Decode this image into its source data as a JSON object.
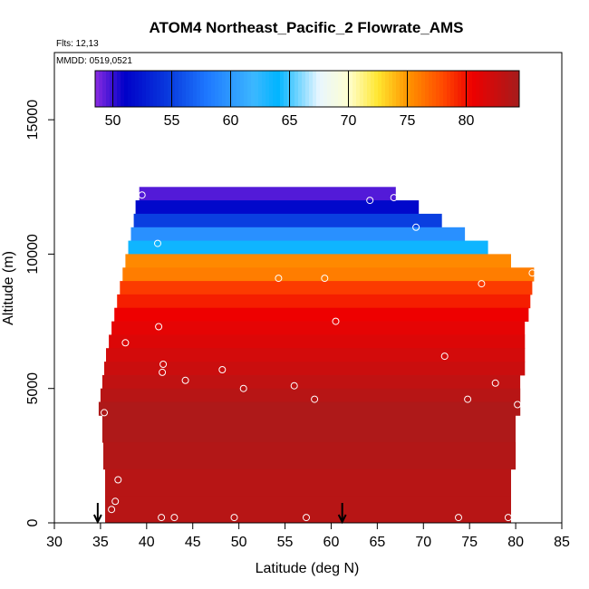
{
  "chart_data": {
    "type": "heatmap",
    "title": "ATOM4 Northeast_Pacific_2 Flowrate_AMS",
    "annotations": {
      "flights": "Flts: 12,13",
      "dates": "MMDD: 0519,0521"
    },
    "xlabel": "Latitude (deg N)",
    "ylabel": "Altitude (m)",
    "xlim": [
      30,
      85
    ],
    "ylim": [
      0,
      17500
    ],
    "x_ticks": [
      30,
      35,
      40,
      45,
      50,
      55,
      60,
      65,
      70,
      75,
      80,
      85
    ],
    "y_ticks": [
      0,
      5000,
      10000,
      15000
    ],
    "colorbar": {
      "range": [
        48.5,
        84.5
      ],
      "ticks": [
        50,
        55,
        60,
        65,
        70,
        75,
        80
      ],
      "stops": [
        {
          "v": 48.5,
          "c": "#8a2be2"
        },
        {
          "v": 51.0,
          "c": "#0000c8"
        },
        {
          "v": 55.0,
          "c": "#0a3fe0"
        },
        {
          "v": 58.0,
          "c": "#1e78ff"
        },
        {
          "v": 62.0,
          "c": "#3cb8ff"
        },
        {
          "v": 64.0,
          "c": "#00b4ff"
        },
        {
          "v": 67.5,
          "c": "#e8f6ff"
        },
        {
          "v": 70.0,
          "c": "#ffffd0"
        },
        {
          "v": 72.5,
          "c": "#ffe630"
        },
        {
          "v": 75.0,
          "c": "#ff9600"
        },
        {
          "v": 78.0,
          "c": "#ff4a00"
        },
        {
          "v": 80.5,
          "c": "#ee0000"
        },
        {
          "v": 84.5,
          "c": "#a51c1c"
        }
      ]
    },
    "bands": [
      {
        "alt_lo": 12000,
        "alt_hi": 12500,
        "lat_start": 39.2,
        "lat_end": 67.0,
        "value": 49.5
      },
      {
        "alt_lo": 11500,
        "alt_hi": 12000,
        "lat_start": 38.8,
        "lat_end": 69.5,
        "value": 51.5
      },
      {
        "alt_lo": 11000,
        "alt_hi": 11500,
        "lat_start": 38.6,
        "lat_end": 72.0,
        "value": 55.0
      },
      {
        "alt_lo": 10500,
        "alt_hi": 11000,
        "lat_start": 38.3,
        "lat_end": 74.5,
        "value": 59.5
      },
      {
        "alt_lo": 10000,
        "alt_hi": 10500,
        "lat_start": 38.0,
        "lat_end": 77.0,
        "value": 63.5
      },
      {
        "alt_lo": 9500,
        "alt_hi": 10000,
        "lat_start": 37.7,
        "lat_end": 79.5,
        "value": 75.5
      },
      {
        "alt_lo": 9000,
        "alt_hi": 9500,
        "lat_start": 37.4,
        "lat_end": 82.0,
        "value": 76.0
      },
      {
        "alt_lo": 8500,
        "alt_hi": 9000,
        "lat_start": 37.1,
        "lat_end": 81.8,
        "value": 78.5
      },
      {
        "alt_lo": 8000,
        "alt_hi": 8500,
        "lat_start": 36.8,
        "lat_end": 81.6,
        "value": 79.5
      },
      {
        "alt_lo": 7500,
        "alt_hi": 8000,
        "lat_start": 36.5,
        "lat_end": 81.4,
        "value": 80.5
      },
      {
        "alt_lo": 7000,
        "alt_hi": 7500,
        "lat_start": 36.2,
        "lat_end": 81.0,
        "value": 81.0
      },
      {
        "alt_lo": 6500,
        "alt_hi": 7000,
        "lat_start": 35.9,
        "lat_end": 81.0,
        "value": 81.5
      },
      {
        "alt_lo": 6000,
        "alt_hi": 6500,
        "lat_start": 35.6,
        "lat_end": 81.0,
        "value": 82.0
      },
      {
        "alt_lo": 5500,
        "alt_hi": 6000,
        "lat_start": 35.4,
        "lat_end": 81.0,
        "value": 82.5
      },
      {
        "alt_lo": 5000,
        "alt_hi": 5500,
        "lat_start": 35.2,
        "lat_end": 80.5,
        "value": 83.0
      },
      {
        "alt_lo": 4500,
        "alt_hi": 5000,
        "lat_start": 35.0,
        "lat_end": 80.5,
        "value": 83.5
      },
      {
        "alt_lo": 4000,
        "alt_hi": 4500,
        "lat_start": 34.8,
        "lat_end": 80.5,
        "value": 84.0
      },
      {
        "alt_lo": 3000,
        "alt_hi": 4000,
        "lat_start": 35.2,
        "lat_end": 80.0,
        "value": 84.0
      },
      {
        "alt_lo": 2000,
        "alt_hi": 3000,
        "lat_start": 35.3,
        "lat_end": 80.0,
        "value": 83.8
      },
      {
        "alt_lo": 1000,
        "alt_hi": 2000,
        "lat_start": 35.5,
        "lat_end": 79.5,
        "value": 83.5
      },
      {
        "alt_lo": 0,
        "alt_hi": 1000,
        "lat_start": 35.5,
        "lat_end": 79.5,
        "value": 83.5
      }
    ],
    "points": [
      {
        "lat": 39.5,
        "alt": 12200
      },
      {
        "lat": 64.2,
        "alt": 12000
      },
      {
        "lat": 66.8,
        "alt": 12100
      },
      {
        "lat": 69.2,
        "alt": 11000
      },
      {
        "lat": 41.2,
        "alt": 10400
      },
      {
        "lat": 54.3,
        "alt": 9100
      },
      {
        "lat": 59.3,
        "alt": 9100
      },
      {
        "lat": 76.3,
        "alt": 8900
      },
      {
        "lat": 81.8,
        "alt": 9300
      },
      {
        "lat": 37.7,
        "alt": 6700
      },
      {
        "lat": 41.3,
        "alt": 7300
      },
      {
        "lat": 60.5,
        "alt": 7500
      },
      {
        "lat": 72.3,
        "alt": 6200
      },
      {
        "lat": 41.8,
        "alt": 5900
      },
      {
        "lat": 41.7,
        "alt": 5600
      },
      {
        "lat": 48.2,
        "alt": 5700
      },
      {
        "lat": 44.2,
        "alt": 5300
      },
      {
        "lat": 50.5,
        "alt": 5000
      },
      {
        "lat": 56.0,
        "alt": 5100
      },
      {
        "lat": 58.2,
        "alt": 4600
      },
      {
        "lat": 74.8,
        "alt": 4600
      },
      {
        "lat": 77.8,
        "alt": 5200
      },
      {
        "lat": 80.2,
        "alt": 4400
      },
      {
        "lat": 35.4,
        "alt": 4100
      },
      {
        "lat": 36.9,
        "alt": 1600
      },
      {
        "lat": 36.6,
        "alt": 800
      },
      {
        "lat": 36.2,
        "alt": 500
      },
      {
        "lat": 41.6,
        "alt": 200
      },
      {
        "lat": 43.0,
        "alt": 200
      },
      {
        "lat": 49.5,
        "alt": 200
      },
      {
        "lat": 57.3,
        "alt": 200
      },
      {
        "lat": 73.8,
        "alt": 200
      },
      {
        "lat": 79.2,
        "alt": 200
      }
    ],
    "arrows": [
      {
        "lat": 34.7
      },
      {
        "lat": 61.2
      }
    ]
  }
}
